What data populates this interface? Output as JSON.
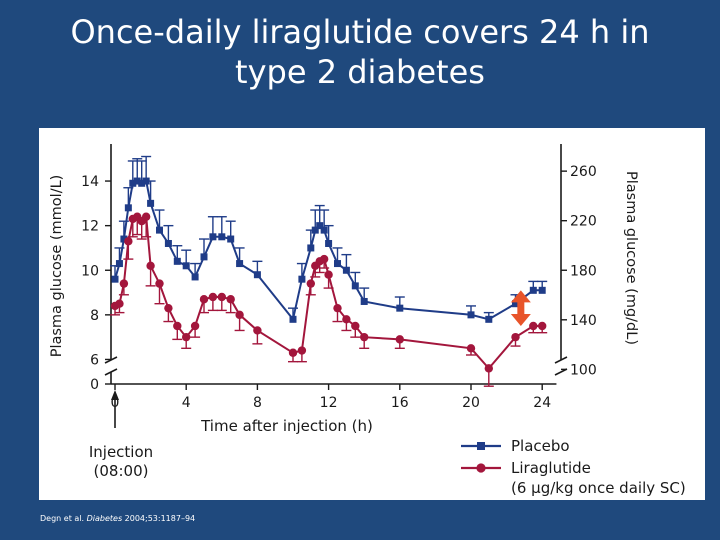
{
  "slide": {
    "title_line1": "Once-daily liraglutide covers 24 h in",
    "title_line2": "type 2 diabetes"
  },
  "citation": {
    "authors": "Degn et al.",
    "journal": "Diabetes",
    "details": "2004;53:1187–94"
  },
  "colors": {
    "background": "#1f497d",
    "placebo": "#1f3c88",
    "liraglutide": "#a3163c",
    "difference_arrow": "#e8542a"
  },
  "chart_data": {
    "type": "line",
    "xlabel": "Time after injection (h)",
    "ylabel_left": "Plasma glucose (mmol/L)",
    "ylabel_right": "Plasma glucose (mg/dL)",
    "x_ticks": [
      0,
      4,
      8,
      12,
      16,
      20,
      24
    ],
    "y_ticks_left": [
      0,
      6,
      8,
      10,
      12,
      14
    ],
    "y_ticks_right": [
      100,
      140,
      180,
      220,
      260
    ],
    "axis_break": true,
    "xlim": [
      0,
      25
    ],
    "ylim_left": [
      5.2,
      15
    ],
    "annotation": {
      "line1": "Injection",
      "line2": "(08:00)",
      "x": 0
    },
    "legend_placement": "bottom-right",
    "legend_note": "(6 µg/kg once daily SC)",
    "difference_marker_x": 22.8,
    "series": [
      {
        "name": "Placebo",
        "color": "#1f3c88",
        "marker": "square",
        "points": [
          [
            0,
            9.6,
            0.6
          ],
          [
            0.25,
            10.3,
            0.7
          ],
          [
            0.5,
            11.4,
            0.8
          ],
          [
            0.75,
            12.8,
            0.9
          ],
          [
            1,
            13.9,
            1.0
          ],
          [
            1.25,
            14.0,
            1.0
          ],
          [
            1.5,
            13.9,
            1.0
          ],
          [
            1.75,
            14.0,
            1.1
          ],
          [
            2,
            13.0,
            1.0
          ],
          [
            2.5,
            11.8,
            0.9
          ],
          [
            3,
            11.2,
            0.8
          ],
          [
            3.5,
            10.4,
            0.7
          ],
          [
            4,
            10.2,
            0.7
          ],
          [
            4.5,
            9.7,
            0.6
          ],
          [
            5,
            10.6,
            0.8
          ],
          [
            5.5,
            11.5,
            0.9
          ],
          [
            6,
            11.5,
            0.9
          ],
          [
            6.5,
            11.4,
            0.8
          ],
          [
            7,
            10.3,
            0.7
          ],
          [
            8,
            9.8,
            0.6
          ],
          [
            10,
            7.8,
            0.5
          ],
          [
            10.5,
            9.6,
            0.7
          ],
          [
            11,
            11.0,
            0.8
          ],
          [
            11.25,
            11.8,
            0.9
          ],
          [
            11.5,
            12.0,
            0.9
          ],
          [
            11.75,
            11.8,
            0.9
          ],
          [
            12,
            11.2,
            0.8
          ],
          [
            12.5,
            10.3,
            0.7
          ],
          [
            13,
            10.0,
            0.7
          ],
          [
            13.5,
            9.3,
            0.6
          ],
          [
            14,
            8.6,
            0.6
          ],
          [
            16,
            8.3,
            0.5
          ],
          [
            20,
            8.0,
            0.4
          ],
          [
            21,
            7.8,
            0.3
          ],
          [
            22.5,
            8.5,
            0.4
          ],
          [
            23.5,
            9.1,
            0.4
          ],
          [
            24,
            9.1,
            0.4
          ]
        ]
      },
      {
        "name": "Liraglutide",
        "color": "#a3163c",
        "marker": "circle",
        "points": [
          [
            0,
            8.4,
            0.4
          ],
          [
            0.25,
            8.5,
            0.4
          ],
          [
            0.5,
            9.4,
            0.5
          ],
          [
            0.75,
            11.3,
            0.8
          ],
          [
            1,
            12.3,
            0.8
          ],
          [
            1.25,
            12.4,
            0.8
          ],
          [
            1.5,
            12.2,
            0.8
          ],
          [
            1.75,
            12.4,
            0.9
          ],
          [
            2,
            10.2,
            0.9
          ],
          [
            2.5,
            9.4,
            0.9
          ],
          [
            3,
            8.3,
            0.6
          ],
          [
            3.5,
            7.5,
            0.6
          ],
          [
            4,
            7.0,
            0.5
          ],
          [
            4.5,
            7.5,
            0.5
          ],
          [
            5,
            8.7,
            0.6
          ],
          [
            5.5,
            8.8,
            0.6
          ],
          [
            6,
            8.8,
            0.6
          ],
          [
            6.5,
            8.7,
            0.6
          ],
          [
            7,
            8.0,
            0.7
          ],
          [
            8,
            7.3,
            0.6
          ],
          [
            10,
            6.3,
            0.4
          ],
          [
            10.5,
            6.4,
            0.5
          ],
          [
            11,
            9.4,
            0.5
          ],
          [
            11.25,
            10.2,
            0.5
          ],
          [
            11.5,
            10.4,
            0.5
          ],
          [
            11.75,
            10.5,
            0.4
          ],
          [
            12,
            9.8,
            0.6
          ],
          [
            12.5,
            8.3,
            0.6
          ],
          [
            13,
            7.8,
            0.5
          ],
          [
            13.5,
            7.5,
            0.5
          ],
          [
            14,
            7.0,
            0.5
          ],
          [
            16,
            6.9,
            0.4
          ],
          [
            20,
            6.5,
            0.3
          ],
          [
            21,
            5.6,
            0.8
          ],
          [
            22.5,
            7.0,
            0.4
          ],
          [
            23.5,
            7.5,
            0.3
          ],
          [
            24,
            7.5,
            0.3
          ]
        ]
      }
    ]
  }
}
